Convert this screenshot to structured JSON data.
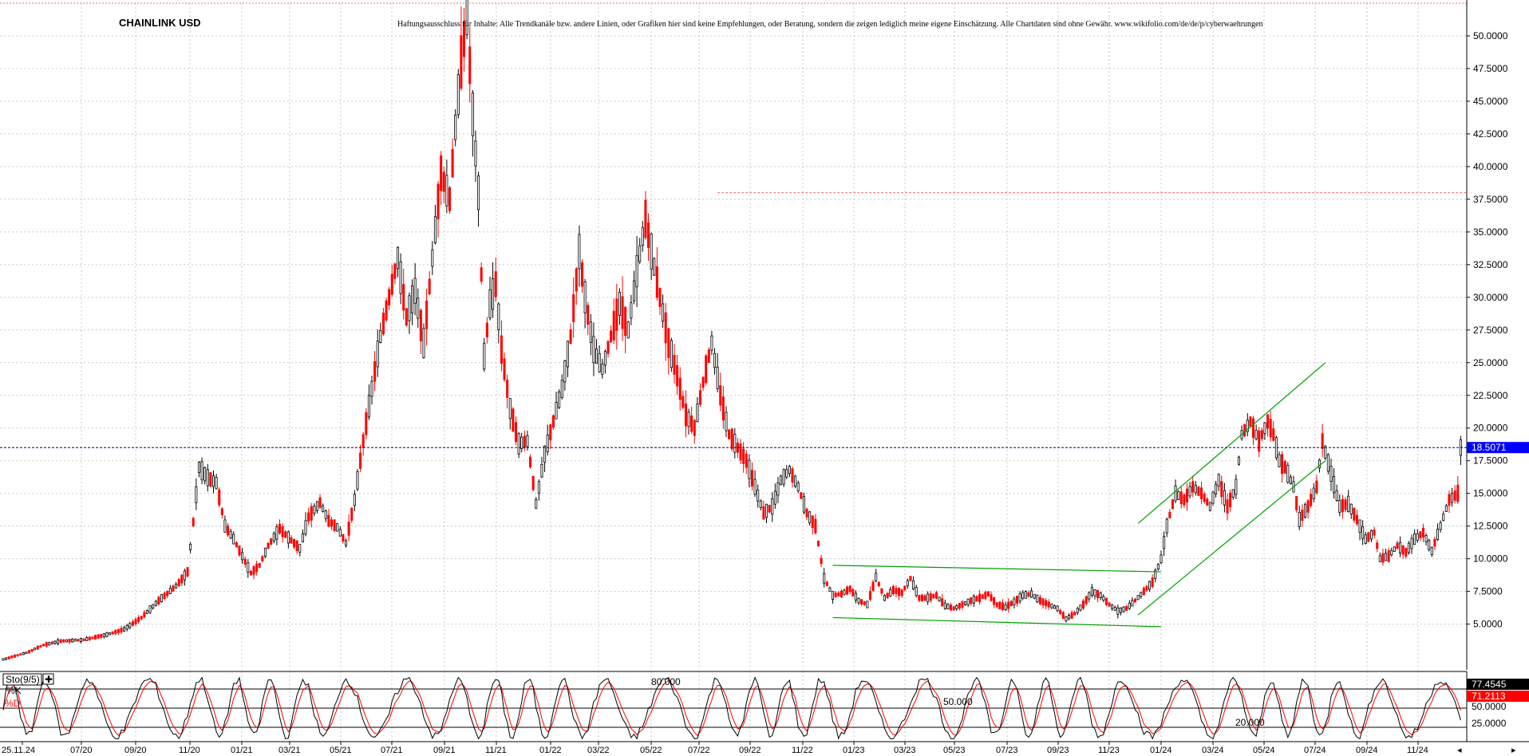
{
  "chart_data": [
    {
      "type": "candlestick",
      "title": "CHAINLINK USD",
      "disclaimer": "Haftungsausschluss für Inhalte: Alle Trendkanäle bzw. andere Linien, oder Grafiken hier sind keine Empfehlungen, oder Beratung, sondern die zeigen lediglich meine eigene Einschätzung. Alle Chartdaten sind ohne Gewähr.  www.wikifolio.com/de/de/p/cyberwaehrungen",
      "ylim": [
        1.5,
        52.5
      ],
      "yticks": [
        "5.0000",
        "7.5000",
        "10.0000",
        "12.5000",
        "15.0000",
        "17.5000",
        "20.0000",
        "22.5000",
        "25.0000",
        "27.5000",
        "30.0000",
        "32.5000",
        "35.0000",
        "37.5000",
        "40.0000",
        "42.5000",
        "45.0000",
        "47.5000",
        "50.0000"
      ],
      "x_tick_labels": [
        "25.11.24",
        "07/20",
        "09/20",
        "11/20",
        "01/21",
        "03/21",
        "05/21",
        "07/21",
        "09/21",
        "11/21",
        "01/22",
        "03/22",
        "05/22",
        "07/22",
        "09/22",
        "11/22",
        "01/23",
        "03/23",
        "05/23",
        "07/23",
        "09/23",
        "11/23",
        "01/24",
        "03/24",
        "05/24",
        "07/24",
        "09/24",
        "11/24"
      ],
      "current_price_label": "18.5071",
      "current_price": 18.5071,
      "resistance_level": 38.0,
      "grid": true,
      "price_path": [
        [
          0,
          2.3
        ],
        [
          8,
          2.8
        ],
        [
          14,
          3.4
        ],
        [
          20,
          3.7
        ],
        [
          28,
          3.8
        ],
        [
          36,
          4.2
        ],
        [
          42,
          4.6
        ],
        [
          48,
          5.5
        ],
        [
          54,
          6.8
        ],
        [
          60,
          7.9
        ],
        [
          64,
          9.0
        ],
        [
          66,
          12.8
        ],
        [
          68,
          17.0
        ],
        [
          71,
          16.2
        ],
        [
          74,
          15.8
        ],
        [
          77,
          12.5
        ],
        [
          80,
          11.5
        ],
        [
          83,
          10.2
        ],
        [
          86,
          8.9
        ],
        [
          89,
          9.5
        ],
        [
          92,
          11.0
        ],
        [
          96,
          12.3
        ],
        [
          100,
          11.4
        ],
        [
          103,
          10.8
        ],
        [
          106,
          13.2
        ],
        [
          110,
          14.3
        ],
        [
          113,
          12.9
        ],
        [
          116,
          12.4
        ],
        [
          119,
          11.2
        ],
        [
          122,
          14.5
        ],
        [
          125,
          19.0
        ],
        [
          128,
          23.0
        ],
        [
          131,
          27.0
        ],
        [
          134,
          30.0
        ],
        [
          137,
          33.0
        ],
        [
          140,
          28.5
        ],
        [
          143,
          30.5
        ],
        [
          146,
          26.5
        ],
        [
          149,
          33.0
        ],
        [
          152,
          39.5
        ],
        [
          155,
          37.5
        ],
        [
          157,
          43.0
        ],
        [
          159,
          48.0
        ],
        [
          161,
          51.5
        ],
        [
          163,
          44.0
        ],
        [
          165,
          38.0
        ],
        [
          167,
          25.5
        ],
        [
          169,
          29.5
        ],
        [
          171,
          31.0
        ],
        [
          173,
          26.0
        ],
        [
          176,
          21.5
        ],
        [
          179,
          18.8
        ],
        [
          182,
          19.0
        ],
        [
          185,
          14.2
        ],
        [
          188,
          18.0
        ],
        [
          191,
          20.5
        ],
        [
          194,
          23.0
        ],
        [
          197,
          27.0
        ],
        [
          200,
          33.5
        ],
        [
          202,
          30.0
        ],
        [
          205,
          26.0
        ],
        [
          208,
          24.5
        ],
        [
          211,
          27.0
        ],
        [
          214,
          29.5
        ],
        [
          217,
          27.5
        ],
        [
          220,
          32.0
        ],
        [
          223,
          36.0
        ],
        [
          225,
          33.5
        ],
        [
          228,
          30.0
        ],
        [
          231,
          26.5
        ],
        [
          234,
          24.0
        ],
        [
          237,
          21.0
        ],
        [
          240,
          20.0
        ],
        [
          243,
          23.5
        ],
        [
          246,
          26.5
        ],
        [
          249,
          22.5
        ],
        [
          252,
          19.5
        ],
        [
          255,
          18.5
        ],
        [
          258,
          17.5
        ],
        [
          261,
          15.5
        ],
        [
          264,
          13.5
        ],
        [
          267,
          14.0
        ],
        [
          270,
          16.0
        ],
        [
          273,
          16.8
        ],
        [
          276,
          15.5
        ],
        [
          279,
          13.5
        ],
        [
          282,
          12.5
        ],
        [
          285,
          8.5
        ],
        [
          288,
          7.2
        ],
        [
          291,
          7.3
        ],
        [
          294,
          7.7
        ],
        [
          297,
          6.8
        ],
        [
          300,
          6.5
        ],
        [
          303,
          8.6
        ],
        [
          306,
          7.0
        ],
        [
          309,
          7.6
        ],
        [
          312,
          7.4
        ],
        [
          315,
          8.5
        ],
        [
          318,
          7.0
        ],
        [
          321,
          7.0
        ],
        [
          324,
          7.2
        ],
        [
          327,
          6.4
        ],
        [
          330,
          6.2
        ],
        [
          333,
          6.5
        ],
        [
          336,
          6.8
        ],
        [
          339,
          7.0
        ],
        [
          342,
          7.3
        ],
        [
          345,
          6.5
        ],
        [
          348,
          6.3
        ],
        [
          351,
          6.7
        ],
        [
          354,
          7.2
        ],
        [
          357,
          7.3
        ],
        [
          360,
          6.8
        ],
        [
          363,
          6.5
        ],
        [
          366,
          6.2
        ],
        [
          369,
          5.4
        ],
        [
          372,
          5.8
        ],
        [
          375,
          6.5
        ],
        [
          378,
          7.5
        ],
        [
          381,
          7.2
        ],
        [
          384,
          6.5
        ],
        [
          387,
          6.0
        ],
        [
          390,
          6.2
        ],
        [
          393,
          6.8
        ],
        [
          396,
          7.5
        ],
        [
          399,
          8.2
        ],
        [
          402,
          10.0
        ],
        [
          404,
          12.5
        ],
        [
          407,
          15.0
        ],
        [
          410,
          14.5
        ],
        [
          413,
          15.5
        ],
        [
          416,
          15.0
        ],
        [
          419,
          14.0
        ],
        [
          422,
          16.0
        ],
        [
          425,
          14.0
        ],
        [
          428,
          15.5
        ],
        [
          430,
          19.5
        ],
        [
          433,
          20.5
        ],
        [
          436,
          19.0
        ],
        [
          439,
          20.5
        ],
        [
          441,
          19.5
        ],
        [
          443,
          17.5
        ],
        [
          445,
          17.0
        ],
        [
          448,
          15.5
        ],
        [
          450,
          13.0
        ],
        [
          453,
          14.0
        ],
        [
          456,
          15.5
        ],
        [
          458,
          19.0
        ],
        [
          461,
          16.5
        ],
        [
          464,
          14.0
        ],
        [
          467,
          14.2
        ],
        [
          470,
          13.0
        ],
        [
          473,
          11.5
        ],
        [
          476,
          12.0
        ],
        [
          478,
          10.0
        ],
        [
          481,
          10.2
        ],
        [
          484,
          11.0
        ],
        [
          487,
          10.5
        ],
        [
          490,
          11.5
        ],
        [
          493,
          12.0
        ],
        [
          496,
          10.6
        ],
        [
          499,
          12.5
        ],
        [
          502,
          14.5
        ],
        [
          505,
          15.0
        ],
        [
          506,
          18.5
        ]
      ],
      "trend_lines": [
        {
          "from": [
            288,
            9.5
          ],
          "to": [
            402,
            9.0
          ]
        },
        {
          "from": [
            288,
            5.5
          ],
          "to": [
            402,
            4.8
          ]
        },
        {
          "from": [
            394,
            12.7
          ],
          "to": [
            459,
            25.0
          ]
        },
        {
          "from": [
            394,
            5.7
          ],
          "to": [
            459,
            17.5
          ]
        }
      ]
    },
    {
      "type": "line",
      "indicator_label": "Sto(9/5)",
      "series": [
        {
          "name": "%K",
          "last_value_label": "77.4545",
          "color": "#000000"
        },
        {
          "name": "%D",
          "last_value_label": "71.2113",
          "color": "#ff0000"
        }
      ],
      "ylim": [
        0,
        100
      ],
      "level_labels": [
        "80.000",
        "50.000",
        "20.000",
        "25.0000",
        "50.0000"
      ],
      "levels": [
        80,
        50,
        20
      ]
    }
  ],
  "colors": {
    "up_candle": "#000000",
    "down_candle": "#ff0000",
    "trend_line": "#00a000",
    "resistance": "#ff6666",
    "current_price_line": "#000080",
    "price_badge": "#0000ff",
    "k_badge": "#000000",
    "d_badge": "#ff0000"
  }
}
